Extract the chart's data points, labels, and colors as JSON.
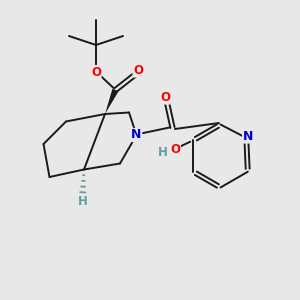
{
  "bg_color": "#e8e8e8",
  "bond_color": "#1a1a1a",
  "oxygen_color": "#ff0000",
  "nitrogen_color": "#0000cc",
  "hydrogen_color": "#5f9ea0",
  "figsize": [
    3.0,
    3.0
  ],
  "dpi": 100,
  "xlim": [
    0,
    10
  ],
  "ylim": [
    0,
    10
  ],
  "lw": 1.4,
  "fs": 8.5
}
